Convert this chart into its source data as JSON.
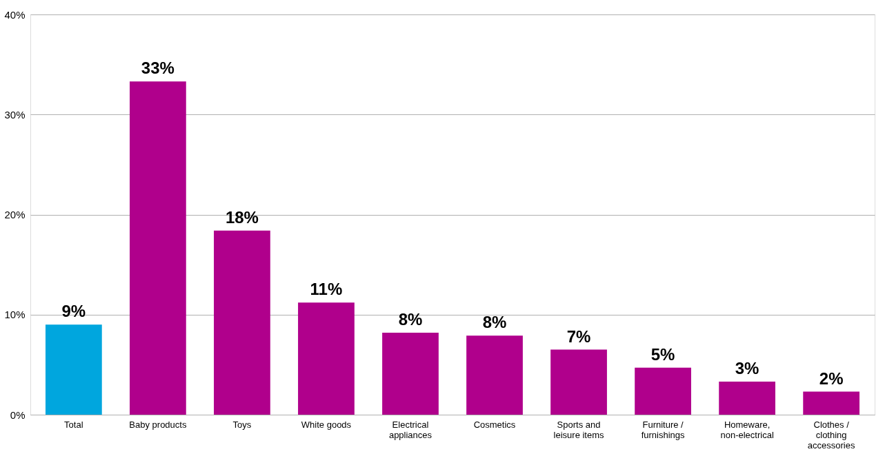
{
  "chart_data": {
    "type": "bar",
    "categories": [
      "Total",
      "Baby products",
      "Toys",
      "White goods",
      "Electrical appliances",
      "Cosmetics",
      "Sports and leisure items",
      "Furniture / furnishings",
      "Homeware, non-electrical",
      "Clothes / clothing accessories"
    ],
    "values": [
      9.0,
      33.3,
      18.4,
      11.2,
      8.2,
      7.9,
      6.5,
      4.7,
      3.3,
      2.3
    ],
    "colors": [
      "#00a6de",
      "#b0008c",
      "#b0008c",
      "#b0008c",
      "#b0008c",
      "#b0008c",
      "#b0008c",
      "#b0008c",
      "#b0008c",
      "#b0008c"
    ],
    "value_labels": [
      "9%",
      "33%",
      "18%",
      "11%",
      "8%",
      "8%",
      "7%",
      "5%",
      "3%",
      "2%"
    ],
    "ylim": [
      0,
      40
    ],
    "yticks": [
      {
        "value": 0,
        "label": "0%"
      },
      {
        "value": 10,
        "label": "10%"
      },
      {
        "value": 20,
        "label": "20%"
      },
      {
        "value": 30,
        "label": "30%"
      },
      {
        "value": 40,
        "label": "40%"
      }
    ],
    "grid": "y"
  }
}
